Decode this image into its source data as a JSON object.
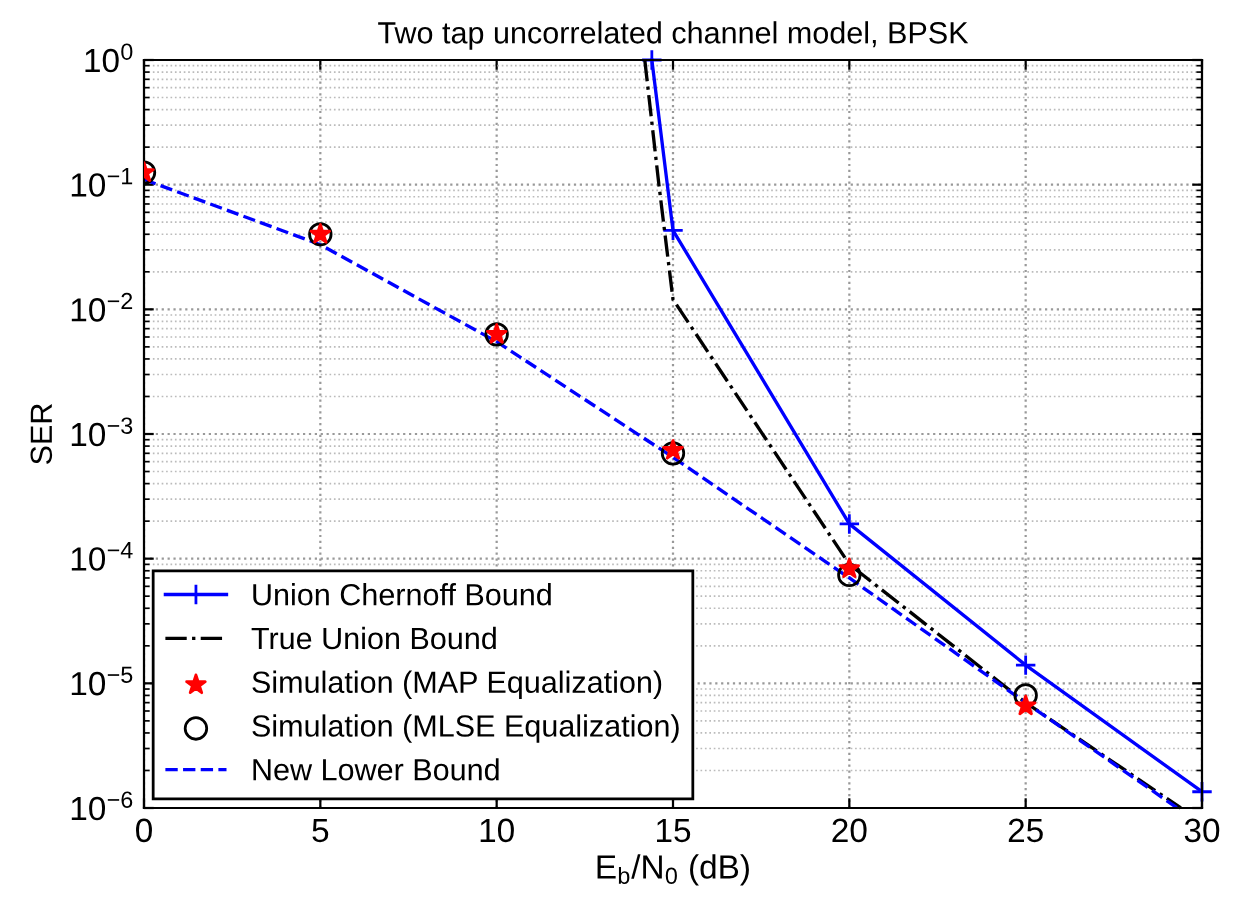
{
  "chart_data": {
    "type": "line",
    "title": "Two tap uncorrelated channel model, BPSK",
    "xlabel": "E$_{b}$/N$_{0}$ (dB)",
    "ylabel": "SER",
    "log": "y",
    "xlim": [
      0,
      30
    ],
    "ylim": [
      1e-06,
      1
    ],
    "xticks": [
      0,
      5,
      10,
      15,
      20,
      25,
      30
    ],
    "yticks": [
      {
        "value": 1e-06,
        "label": "10$^{−6}$"
      },
      {
        "value": 1e-05,
        "label": "10$^{−5}$"
      },
      {
        "value": 0.0001,
        "label": "10$^{−4}$"
      },
      {
        "value": 0.001,
        "label": "10$^{−3}$"
      },
      {
        "value": 0.01,
        "label": "10$^{−2}$"
      },
      {
        "value": 0.1,
        "label": "10$^{−1}$"
      },
      {
        "value": 1,
        "label": "10$^{0}$"
      }
    ],
    "grid": true,
    "legend": "bottom left",
    "series": [
      {
        "name": "Union Chernoff Bound",
        "color": "#0000ff",
        "marker": "cross",
        "line_style": "solid",
        "x": [
          14.4,
          15,
          20,
          25,
          30
        ],
        "values": [
          1,
          0.043,
          0.00019,
          1.4e-05,
          1.35e-06
        ]
      },
      {
        "name": "True Union Bound",
        "color": "#000000",
        "marker": "none",
        "line_style": "dashdot",
        "x": [
          14.2,
          14.6,
          15,
          20,
          25,
          29.4
        ],
        "values": [
          1,
          0.1,
          0.012,
          9e-05,
          7e-06,
          1e-06
        ]
      },
      {
        "name": "Simulation (MAP Equalization)",
        "color": "#ff0000",
        "type": "scatter",
        "marker": "star",
        "x": [
          0,
          5,
          10,
          15,
          20,
          25
        ],
        "values": [
          0.125,
          0.04,
          0.0063,
          0.00074,
          8.3e-05,
          6.6e-06
        ]
      },
      {
        "name": "Simulation (MLSE Equalization)",
        "color": "#000000",
        "type": "scatter",
        "marker": "circle",
        "x": [
          0,
          5,
          10,
          15,
          20,
          25
        ],
        "values": [
          0.125,
          0.04,
          0.0063,
          0.0007,
          7.4e-05,
          8e-06
        ]
      },
      {
        "name": "New Lower Bound",
        "color": "#0000ff",
        "marker": "none",
        "line_style": "dashed",
        "x": [
          0,
          5,
          10,
          15,
          20,
          25,
          29.3
        ],
        "values": [
          0.11,
          0.033,
          0.0055,
          0.00065,
          7e-05,
          7e-06,
          1e-06
        ]
      }
    ]
  }
}
